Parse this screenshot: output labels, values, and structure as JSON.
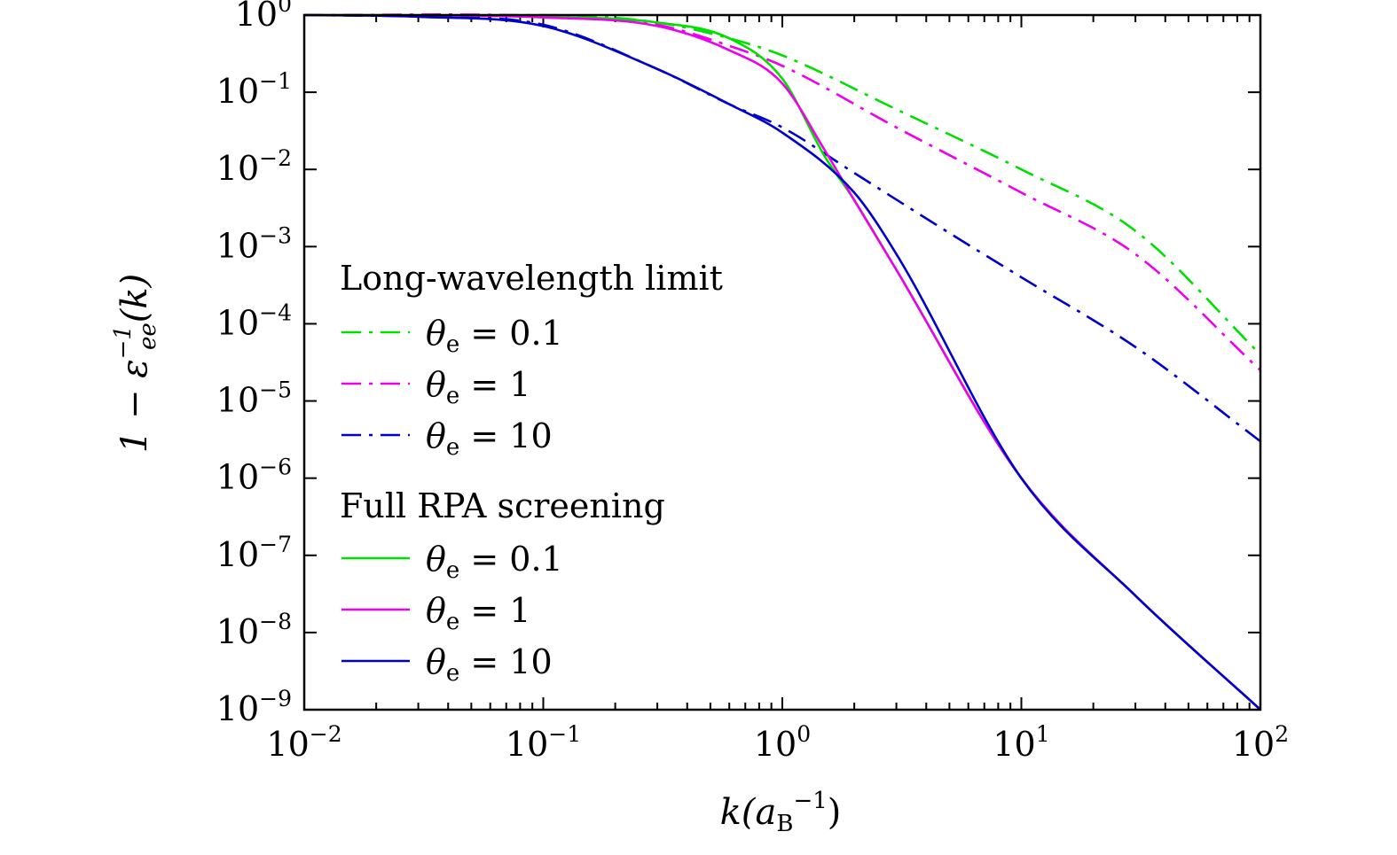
{
  "chart_data": {
    "type": "line",
    "title": "",
    "xlabel": "k(a_B^-1)",
    "ylabel": "1 − ε_ee^−1(k)",
    "xlabel_parts": {
      "main": "k(a",
      "sub": "B",
      "sup": "−1",
      "close": ")"
    },
    "ylabel_parts": {
      "pre": "1 − ε",
      "sup": "−1",
      "sub": "ee",
      "post": "(k)"
    },
    "xscale": "log",
    "yscale": "log",
    "xlim": [
      0.01,
      100
    ],
    "ylim": [
      1e-09,
      1
    ],
    "grid": false,
    "legend_position": "left",
    "x_ticks": [
      {
        "value": 0.01,
        "base": "10",
        "exp": "−2"
      },
      {
        "value": 0.1,
        "base": "10",
        "exp": "−1"
      },
      {
        "value": 1,
        "base": "10",
        "exp": "0"
      },
      {
        "value": 10,
        "base": "10",
        "exp": "1"
      },
      {
        "value": 100,
        "base": "10",
        "exp": "2"
      }
    ],
    "y_ticks": [
      {
        "value": 1,
        "base": "10",
        "exp": "0"
      },
      {
        "value": 0.1,
        "base": "10",
        "exp": "−1"
      },
      {
        "value": 0.01,
        "base": "10",
        "exp": "−2"
      },
      {
        "value": 0.001,
        "base": "10",
        "exp": "−3"
      },
      {
        "value": 0.0001,
        "base": "10",
        "exp": "−4"
      },
      {
        "value": 1e-05,
        "base": "10",
        "exp": "−5"
      },
      {
        "value": 1e-06,
        "base": "10",
        "exp": "−6"
      },
      {
        "value": 1e-07,
        "base": "10",
        "exp": "−7"
      },
      {
        "value": 1e-08,
        "base": "10",
        "exp": "−8"
      },
      {
        "value": 1e-09,
        "base": "10",
        "exp": "−9"
      }
    ],
    "legend_groups": [
      {
        "heading": "Long-wavelength limit",
        "style": "dashdot",
        "entries": [
          0,
          1,
          2
        ]
      },
      {
        "heading": "Full RPA screening",
        "style": "solid",
        "entries": [
          3,
          4,
          5
        ]
      }
    ],
    "series": [
      {
        "name": "θe = 0.1",
        "label_sym": "θ",
        "label_sub": "e",
        "label_val": " = 0.1",
        "group": "Long-wavelength limit",
        "color": "#00e000",
        "dash": "dashdot",
        "x": [
          0.01,
          0.1,
          0.3,
          0.6,
          1,
          3,
          10,
          30,
          100
        ],
        "y": [
          1.0,
          1.0,
          0.8,
          0.5,
          0.3,
          0.06,
          0.01,
          0.0016,
          4e-05
        ]
      },
      {
        "name": "θe = 1",
        "label_sym": "θ",
        "label_sub": "e",
        "label_val": " = 1",
        "group": "Long-wavelength limit",
        "color": "#ee00ee",
        "dash": "dashdot",
        "x": [
          0.01,
          0.1,
          0.3,
          0.6,
          1,
          3,
          10,
          30,
          100
        ],
        "y": [
          1.0,
          0.97,
          0.75,
          0.4,
          0.22,
          0.035,
          0.005,
          0.0008,
          2.5e-05
        ]
      },
      {
        "name": "θe = 10",
        "label_sym": "θ",
        "label_sub": "e",
        "label_val": " = 10",
        "group": "Long-wavelength limit",
        "color": "#0000cc",
        "dash": "dashdot",
        "x": [
          0.01,
          0.03,
          0.1,
          0.3,
          0.6,
          1,
          2,
          5,
          10,
          30,
          100
        ],
        "y": [
          1.0,
          0.95,
          0.75,
          0.2,
          0.07,
          0.035,
          0.009,
          0.0015,
          0.0004,
          5e-05,
          3e-06
        ]
      },
      {
        "name": "θe = 0.1",
        "label_sym": "θ",
        "label_sub": "e",
        "label_val": " = 0.1",
        "group": "Full RPA screening",
        "color": "#00e000",
        "dash": "solid",
        "x": [
          0.01,
          0.1,
          0.3,
          0.6,
          1,
          1.5,
          2,
          3,
          10,
          30,
          100
        ],
        "y": [
          1.0,
          0.95,
          0.8,
          0.5,
          0.15,
          0.015,
          0.004,
          0.0005,
          1e-06,
          3e-08,
          1e-09
        ]
      },
      {
        "name": "θe = 1",
        "label_sym": "θ",
        "label_sub": "e",
        "label_val": " = 1",
        "group": "Full RPA screening",
        "color": "#ee00ee",
        "dash": "solid",
        "x": [
          0.01,
          0.1,
          0.3,
          0.6,
          1,
          1.5,
          2,
          3,
          10,
          30,
          100
        ],
        "y": [
          1.0,
          0.93,
          0.72,
          0.35,
          0.13,
          0.018,
          0.004,
          0.0005,
          1e-06,
          3e-08,
          1e-09
        ]
      },
      {
        "name": "θe = 10",
        "label_sym": "θ",
        "label_sub": "e",
        "label_val": " = 10",
        "group": "Full RPA screening",
        "color": "#0000cc",
        "dash": "solid",
        "x": [
          0.01,
          0.03,
          0.1,
          0.3,
          0.6,
          1,
          2,
          3,
          10,
          30,
          100
        ],
        "y": [
          1.0,
          0.95,
          0.72,
          0.2,
          0.07,
          0.03,
          0.005,
          0.0008,
          1e-06,
          3e-08,
          1e-09
        ]
      }
    ]
  }
}
